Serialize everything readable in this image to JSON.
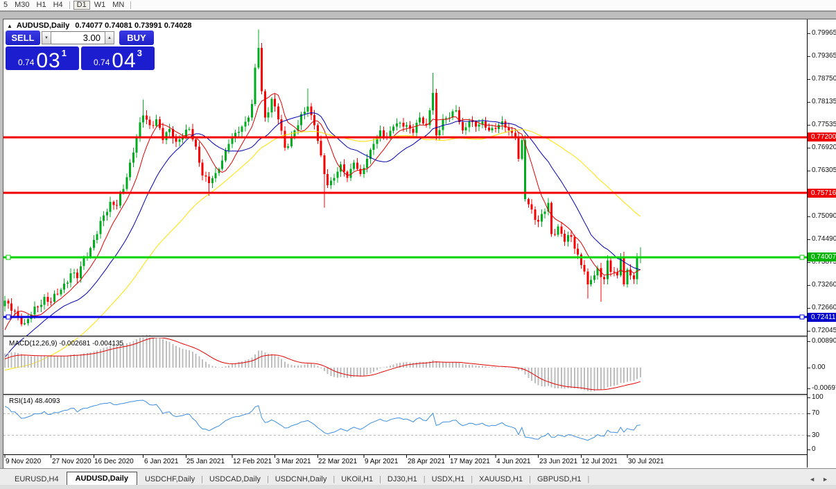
{
  "app": {
    "timeframe_toolbar": {
      "items": [
        "5",
        "M30",
        "H1",
        "H4",
        "D1",
        "W1",
        "MN"
      ],
      "active_item": "D1",
      "separators_after": [
        "H4",
        "MN"
      ]
    }
  },
  "chart_window": {
    "title": {
      "collapse_icon": "▲",
      "symbol": "AUDUSD,Daily",
      "ohlc_text": "0.74077 0.74081 0.73991 0.74028"
    },
    "trade_panel": {
      "sell_button": "SELL",
      "buy_button": "BUY",
      "volume_value": "3.00",
      "spin_down_icon": "▼",
      "spin_up_icon": "▲",
      "sell_quote": {
        "prefix": "0.74",
        "big": "03",
        "sup": "1"
      },
      "buy_quote": {
        "prefix": "0.74",
        "big": "04",
        "sup": "3"
      }
    },
    "price_axis": {
      "grid_labels": [
        "0.79965",
        "0.79365",
        "0.78750",
        "0.78135",
        "0.77535",
        "0.76920",
        "0.76305",
        "0.75090",
        "0.74490",
        "0.73875",
        "0.73260",
        "0.72660",
        "0.72045"
      ],
      "line_badges": [
        {
          "text": "0.77200",
          "price": 0.772,
          "color": "#ee0000"
        },
        {
          "text": "0.75716",
          "price": 0.75716,
          "color": "#ee0000"
        },
        {
          "text": "0.74007",
          "price": 0.74007,
          "color": "#00b400"
        },
        {
          "text": "0.72411",
          "price": 0.72411,
          "color": "#0000cc"
        }
      ]
    },
    "indicators": {
      "macd": {
        "label": "MACD(12,26,9) -0.002681 -0.004135",
        "fast": 12,
        "slow": 26,
        "signal": 9,
        "value": -0.002681,
        "signal_value": -0.004135,
        "axis_labels": [
          {
            "text": "0.008903",
            "value": 0.008903
          },
          {
            "text": "0.00",
            "value": 0
          },
          {
            "text": "-0.00697",
            "value": -0.00697
          }
        ],
        "ylim": [
          -0.00885,
          0.01002
        ],
        "bar_color": "#bdbdbd",
        "signal_color": "#e00000"
      },
      "rsi": {
        "label": "RSI(14) 48.4093",
        "period": 14,
        "value": 48.4093,
        "axis_labels": [
          {
            "text": "100",
            "value": 100
          },
          {
            "text": "70",
            "value": 70
          },
          {
            "text": "30",
            "value": 30
          },
          {
            "text": "0",
            "value": 0
          }
        ],
        "levels": [
          70,
          30
        ],
        "ylim": [
          -6.4,
          103.8
        ],
        "line_color": "#3e8ede"
      }
    },
    "date_axis": {
      "ticks": [
        [
          0,
          "9 Nov 2020"
        ],
        [
          14,
          "27 Nov 2020"
        ],
        [
          27,
          "16 Dec 2020"
        ],
        [
          42,
          "6 Jan 2021"
        ],
        [
          55,
          "25 Jan 2021"
        ],
        [
          69,
          "12 Feb 2021"
        ],
        [
          82,
          "3 Mar 2021"
        ],
        [
          95,
          "22 Mar 2021"
        ],
        [
          109,
          "9 Apr 2021"
        ],
        [
          122,
          "28 Apr 2021"
        ],
        [
          135,
          "17 May 2021"
        ],
        [
          149,
          "4 Jun 2021"
        ],
        [
          162,
          "23 Jun 2021"
        ],
        [
          175,
          "12 Jul 2021"
        ],
        [
          189,
          "30 Jul 2021"
        ]
      ]
    }
  },
  "chart_data": {
    "type": "candlestick",
    "symbol": "AUDUSD",
    "timeframe": "Daily",
    "bar_count": 194,
    "ylim": [
      0.71917,
      0.80279
    ],
    "up_color": "#00ad1f",
    "down_color": "#f80000",
    "warmup_closes": [
      0.7185,
      0.7178,
      0.7162,
      0.715,
      0.7158,
      0.7142,
      0.7128,
      0.7135,
      0.7118,
      0.7102,
      0.7095,
      0.7088,
      0.7075,
      0.7068,
      0.7082,
      0.707,
      0.7055,
      0.7048,
      0.706,
      0.7045,
      0.7032,
      0.7025,
      0.7038,
      0.7022,
      0.701,
      0.7002,
      0.7015,
      0.7028,
      0.702,
      0.7035,
      0.7048,
      0.7042,
      0.7058,
      0.7072,
      0.7065,
      0.708,
      0.7095,
      0.7088,
      0.7105,
      0.712,
      0.7112,
      0.7128,
      0.7145,
      0.7138,
      0.7155,
      0.717,
      0.7185,
      0.721,
      0.7245,
      0.727
    ],
    "close_anchors": [
      [
        0,
        0.7285
      ],
      [
        2,
        0.7258
      ],
      [
        4,
        0.7242
      ],
      [
        6,
        0.7225
      ],
      [
        8,
        0.7248
      ],
      [
        10,
        0.7268
      ],
      [
        12,
        0.7295
      ],
      [
        14,
        0.7282
      ],
      [
        16,
        0.7302
      ],
      [
        18,
        0.733
      ],
      [
        20,
        0.7358
      ],
      [
        22,
        0.7345
      ],
      [
        24,
        0.7398
      ],
      [
        26,
        0.7425
      ],
      [
        28,
        0.7462
      ],
      [
        30,
        0.7512
      ],
      [
        32,
        0.7548
      ],
      [
        34,
        0.7538
      ],
      [
        36,
        0.7582
      ],
      [
        38,
        0.7652
      ],
      [
        40,
        0.7722
      ],
      [
        42,
        0.7778
      ],
      [
        44,
        0.7752
      ],
      [
        46,
        0.7768
      ],
      [
        48,
        0.7712
      ],
      [
        50,
        0.7742
      ],
      [
        52,
        0.7708
      ],
      [
        54,
        0.7722
      ],
      [
        56,
        0.7742
      ],
      [
        58,
        0.7695
      ],
      [
        60,
        0.7618
      ],
      [
        62,
        0.7598
      ],
      [
        64,
        0.7625
      ],
      [
        66,
        0.7658
      ],
      [
        68,
        0.7702
      ],
      [
        70,
        0.7732
      ],
      [
        72,
        0.7748
      ],
      [
        74,
        0.7772
      ],
      [
        75,
        0.7808
      ],
      [
        76,
        0.7905
      ],
      [
        77,
        0.7958
      ],
      [
        78,
        0.7842
      ],
      [
        79,
        0.7772
      ],
      [
        81,
        0.7822
      ],
      [
        83,
        0.7768
      ],
      [
        85,
        0.7692
      ],
      [
        87,
        0.7722
      ],
      [
        89,
        0.7752
      ],
      [
        91,
        0.7788
      ],
      [
        92,
        0.7802
      ],
      [
        94,
        0.7752
      ],
      [
        96,
        0.7672
      ],
      [
        97,
        0.7622
      ],
      [
        98,
        0.7592
      ],
      [
        100,
        0.7612
      ],
      [
        102,
        0.7648
      ],
      [
        104,
        0.7612
      ],
      [
        106,
        0.7652
      ],
      [
        108,
        0.7622
      ],
      [
        110,
        0.7662
      ],
      [
        112,
        0.7702
      ],
      [
        114,
        0.7738
      ],
      [
        116,
        0.7718
      ],
      [
        118,
        0.7748
      ],
      [
        120,
        0.7758
      ],
      [
        122,
        0.7752
      ],
      [
        124,
        0.7732
      ],
      [
        126,
        0.7772
      ],
      [
        128,
        0.7752
      ],
      [
        130,
        0.7838
      ],
      [
        131,
        0.7725
      ],
      [
        133,
        0.7768
      ],
      [
        135,
        0.7772
      ],
      [
        137,
        0.7792
      ],
      [
        139,
        0.7738
      ],
      [
        141,
        0.7762
      ],
      [
        143,
        0.7748
      ],
      [
        145,
        0.7762
      ],
      [
        147,
        0.7738
      ],
      [
        149,
        0.7742
      ],
      [
        151,
        0.7762
      ],
      [
        153,
        0.7738
      ],
      [
        155,
        0.7722
      ],
      [
        156,
        0.7662
      ],
      [
        157,
        0.7712
      ],
      [
        158,
        0.7555
      ],
      [
        160,
        0.7528
      ],
      [
        162,
        0.7495
      ],
      [
        164,
        0.7522
      ],
      [
        165,
        0.7545
      ],
      [
        166,
        0.7462
      ],
      [
        168,
        0.7482
      ],
      [
        170,
        0.7442
      ],
      [
        172,
        0.7455
      ],
      [
        174,
        0.7408
      ],
      [
        176,
        0.7362
      ],
      [
        177,
        0.7328
      ],
      [
        179,
        0.7352
      ],
      [
        180,
        0.7372
      ],
      [
        181,
        0.7348
      ],
      [
        182,
        0.7342
      ],
      [
        183,
        0.7392
      ],
      [
        184,
        0.7362
      ],
      [
        186,
        0.7352
      ],
      [
        187,
        0.7402
      ],
      [
        188,
        0.7328
      ],
      [
        189,
        0.7368
      ],
      [
        190,
        0.7352
      ],
      [
        191,
        0.7342
      ],
      [
        192,
        0.7398
      ],
      [
        193,
        0.74028
      ]
    ],
    "wick_high_overrides": {
      "42": 0.782,
      "77": 0.8007,
      "92": 0.785,
      "130": 0.7891,
      "193": 0.7427
    },
    "wick_low_overrides": {
      "62": 0.7565,
      "97": 0.7532,
      "177": 0.729,
      "181": 0.7282
    },
    "color_overrides": {
      "158": "up"
    },
    "moving_averages": [
      {
        "period": 8,
        "method": "sma",
        "color": "#dc0000"
      },
      {
        "period": 21,
        "method": "sma",
        "color": "#0000aa"
      },
      {
        "period": 50,
        "method": "sma",
        "color": "#ffe100"
      }
    ],
    "hlines": [
      {
        "price": 0.772,
        "color": "#f00000",
        "width": 3,
        "handles": false
      },
      {
        "price": 0.75716,
        "color": "#f00000",
        "width": 3,
        "handles": false
      },
      {
        "price": 0.74007,
        "color": "#00d300",
        "width": 3,
        "handles": true
      },
      {
        "price": 0.72411,
        "color": "#0000e0",
        "width": 3,
        "handles": true
      }
    ]
  },
  "bottom_tabs": {
    "tabs": [
      "EURUSD,H4",
      "AUDUSD,Daily",
      "USDCHF,Daily",
      "USDCAD,Daily",
      "USDCNH,Daily",
      "UKOil,H1",
      "DJ30,H1",
      "USDX,H1",
      "XAUUSD,H1",
      "GBPUSD,H1"
    ],
    "active_index": 1,
    "scroll_left_icon": "◄",
    "scroll_right_icon": "►"
  }
}
